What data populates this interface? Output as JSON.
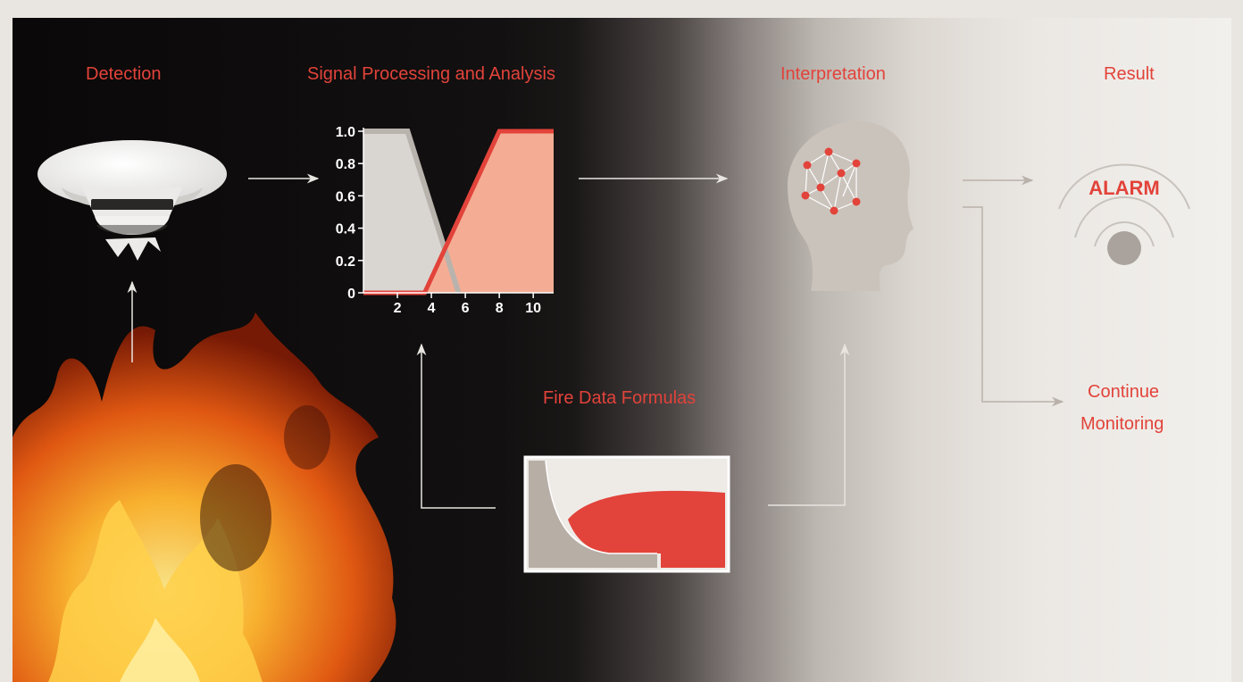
{
  "stages": {
    "detection": "Detection",
    "signal_processing": "Signal Processing and Analysis",
    "interpretation": "Interpretation",
    "result": "Result",
    "fire_data_formulas": "Fire Data Formulas",
    "continue_line1": "Continue",
    "continue_line2": "Monitoring"
  },
  "alarm_label": "ALARM",
  "colors": {
    "accent": "#e2433a",
    "salmon": "#f4ad94",
    "grey_panel": "#d9d6d2",
    "head": "#c9c2bb"
  },
  "chart_data": {
    "type": "area",
    "x_ticks": [
      "2",
      "4",
      "6",
      "8",
      "10"
    ],
    "y_ticks": [
      "0",
      "0.2",
      "0.4",
      "0.6",
      "0.8",
      "1.0"
    ],
    "xlim": [
      0,
      11.2
    ],
    "ylim": [
      0,
      1.0
    ],
    "series": [
      {
        "x": [
          0,
          2.6,
          5.6
        ],
        "y": [
          1.0,
          1.0,
          0.0
        ]
      },
      {
        "x": [
          0,
          3.6,
          8,
          11.2
        ],
        "y": [
          0.0,
          0.0,
          1.0,
          1.0
        ]
      }
    ]
  }
}
